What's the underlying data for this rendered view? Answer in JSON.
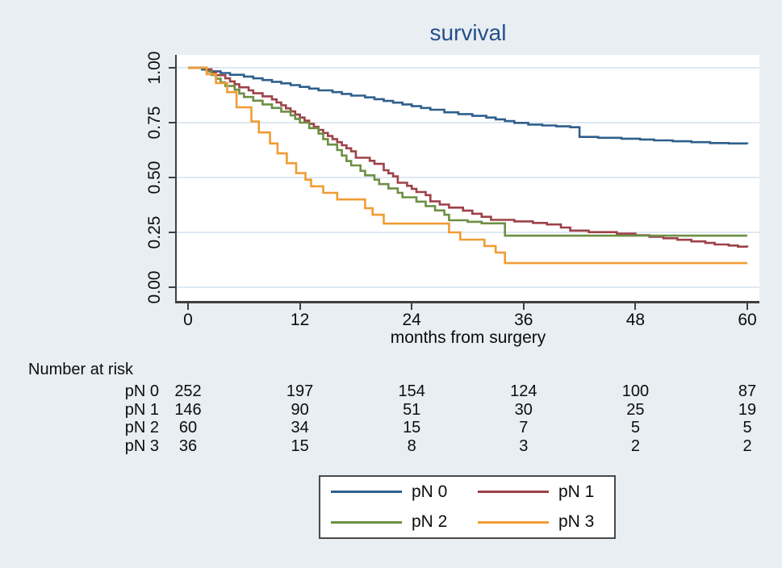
{
  "title": "survival",
  "colors": {
    "background": "#e8eef2",
    "plot_background": "#ffffff",
    "grid": "#dfe9f2",
    "axis": "#3f3f3f",
    "title_text": "#26508b",
    "text": "#0d0d0d",
    "legend_border": "#4a4a4a",
    "series_pn0": "#2e5f8c",
    "series_pn1": "#9d4148",
    "series_pn2": "#6d8f44",
    "series_pn3": "#f09c33"
  },
  "chart_data": {
    "type": "line",
    "subtype": "kaplan-meier-step",
    "title": "survival",
    "xlabel": "months from surgery",
    "ylabel": "",
    "xlim": [
      0,
      60
    ],
    "ylim": [
      0,
      1
    ],
    "xticks": [
      0,
      12,
      24,
      36,
      48,
      60
    ],
    "yticks": [
      {
        "v": 0.0,
        "label": "0.00"
      },
      {
        "v": 0.25,
        "label": "0.25"
      },
      {
        "v": 0.5,
        "label": "0.50"
      },
      {
        "v": 0.75,
        "label": "0.75"
      },
      {
        "v": 1.0,
        "label": "1.00"
      }
    ],
    "grid": "horizontal",
    "legend_position": "below",
    "legend": [
      "pN 0",
      "pN 1",
      "pN 2",
      "pN 3"
    ],
    "series": [
      {
        "name": "pN 0",
        "color": "#2e5f8c",
        "points": [
          [
            0,
            1.0
          ],
          [
            1.5,
            0.992
          ],
          [
            2.5,
            0.984
          ],
          [
            3.5,
            0.976
          ],
          [
            4.5,
            0.968
          ],
          [
            6,
            0.96
          ],
          [
            7,
            0.952
          ],
          [
            8,
            0.944
          ],
          [
            9,
            0.936
          ],
          [
            10,
            0.929
          ],
          [
            11,
            0.921
          ],
          [
            12,
            0.913
          ],
          [
            13,
            0.905
          ],
          [
            14,
            0.897
          ],
          [
            15.5,
            0.889
          ],
          [
            16.5,
            0.881
          ],
          [
            17.5,
            0.873
          ],
          [
            19,
            0.865
          ],
          [
            20,
            0.857
          ],
          [
            21,
            0.849
          ],
          [
            22,
            0.841
          ],
          [
            23,
            0.833
          ],
          [
            24,
            0.825
          ],
          [
            25,
            0.817
          ],
          [
            26,
            0.809
          ],
          [
            27.5,
            0.797
          ],
          [
            29,
            0.789
          ],
          [
            30.5,
            0.781
          ],
          [
            32,
            0.773
          ],
          [
            33,
            0.765
          ],
          [
            34,
            0.757
          ],
          [
            35,
            0.749
          ],
          [
            36.5,
            0.741
          ],
          [
            38,
            0.737
          ],
          [
            39.5,
            0.733
          ],
          [
            41,
            0.729
          ],
          [
            42,
            0.685
          ],
          [
            44,
            0.681
          ],
          [
            46.5,
            0.677
          ],
          [
            48.5,
            0.673
          ],
          [
            50,
            0.669
          ],
          [
            52,
            0.665
          ],
          [
            54,
            0.661
          ],
          [
            56,
            0.657
          ],
          [
            58,
            0.655
          ],
          [
            60,
            0.653
          ]
        ]
      },
      {
        "name": "pN 1",
        "color": "#9d4148",
        "points": [
          [
            0,
            1.0
          ],
          [
            2,
            0.993
          ],
          [
            2.5,
            0.979
          ],
          [
            3,
            0.966
          ],
          [
            4,
            0.952
          ],
          [
            4.5,
            0.938
          ],
          [
            5,
            0.925
          ],
          [
            5.5,
            0.911
          ],
          [
            6.5,
            0.897
          ],
          [
            7,
            0.884
          ],
          [
            8,
            0.87
          ],
          [
            9,
            0.856
          ],
          [
            9.5,
            0.842
          ],
          [
            10,
            0.829
          ],
          [
            10.5,
            0.815
          ],
          [
            11,
            0.801
          ],
          [
            11.5,
            0.787
          ],
          [
            12,
            0.773
          ],
          [
            12.5,
            0.759
          ],
          [
            13,
            0.745
          ],
          [
            13.5,
            0.731
          ],
          [
            14,
            0.717
          ],
          [
            14.5,
            0.703
          ],
          [
            15,
            0.689
          ],
          [
            15.5,
            0.675
          ],
          [
            16,
            0.661
          ],
          [
            16.5,
            0.647
          ],
          [
            17,
            0.633
          ],
          [
            17.5,
            0.619
          ],
          [
            18,
            0.59
          ],
          [
            19.5,
            0.576
          ],
          [
            20,
            0.562
          ],
          [
            21,
            0.533
          ],
          [
            21.5,
            0.519
          ],
          [
            22,
            0.505
          ],
          [
            22.5,
            0.476
          ],
          [
            23.5,
            0.462
          ],
          [
            24,
            0.448
          ],
          [
            24.5,
            0.434
          ],
          [
            25.5,
            0.42
          ],
          [
            26,
            0.391
          ],
          [
            27,
            0.377
          ],
          [
            28,
            0.363
          ],
          [
            29.5,
            0.349
          ],
          [
            30.5,
            0.335
          ],
          [
            31.5,
            0.321
          ],
          [
            32.5,
            0.307
          ],
          [
            35,
            0.3
          ],
          [
            37,
            0.293
          ],
          [
            38.5,
            0.286
          ],
          [
            40,
            0.272
          ],
          [
            41,
            0.258
          ],
          [
            43,
            0.251
          ],
          [
            46,
            0.244
          ],
          [
            48,
            0.237
          ],
          [
            49.5,
            0.23
          ],
          [
            51,
            0.223
          ],
          [
            52.5,
            0.216
          ],
          [
            54,
            0.209
          ],
          [
            55.5,
            0.202
          ],
          [
            56.5,
            0.195
          ],
          [
            58,
            0.19
          ],
          [
            59,
            0.185
          ],
          [
            60,
            0.182
          ]
        ]
      },
      {
        "name": "pN 2",
        "color": "#6d8f44",
        "points": [
          [
            0,
            1.0
          ],
          [
            2,
            0.983
          ],
          [
            2.5,
            0.967
          ],
          [
            3,
            0.95
          ],
          [
            3.5,
            0.933
          ],
          [
            4,
            0.917
          ],
          [
            5,
            0.9
          ],
          [
            5.5,
            0.883
          ],
          [
            6,
            0.867
          ],
          [
            7,
            0.85
          ],
          [
            8,
            0.833
          ],
          [
            9,
            0.817
          ],
          [
            10,
            0.8
          ],
          [
            11,
            0.783
          ],
          [
            11.5,
            0.767
          ],
          [
            12,
            0.75
          ],
          [
            13,
            0.725
          ],
          [
            14,
            0.7
          ],
          [
            14.5,
            0.675
          ],
          [
            15,
            0.65
          ],
          [
            16,
            0.625
          ],
          [
            16.5,
            0.6
          ],
          [
            17,
            0.575
          ],
          [
            17.5,
            0.555
          ],
          [
            18.5,
            0.53
          ],
          [
            19,
            0.51
          ],
          [
            20,
            0.49
          ],
          [
            20.5,
            0.47
          ],
          [
            21.5,
            0.45
          ],
          [
            22.5,
            0.43
          ],
          [
            23,
            0.41
          ],
          [
            24.5,
            0.39
          ],
          [
            25.5,
            0.37
          ],
          [
            26.5,
            0.35
          ],
          [
            27.5,
            0.33
          ],
          [
            28,
            0.305
          ],
          [
            30,
            0.298
          ],
          [
            31.5,
            0.291
          ],
          [
            34,
            0.235
          ],
          [
            60,
            0.235
          ]
        ]
      },
      {
        "name": "pN 3",
        "color": "#f09c33",
        "points": [
          [
            0,
            1.0
          ],
          [
            2,
            0.971
          ],
          [
            3,
            0.93
          ],
          [
            4.2,
            0.889
          ],
          [
            5.2,
            0.82
          ],
          [
            6.8,
            0.755
          ],
          [
            7.6,
            0.705
          ],
          [
            8.8,
            0.655
          ],
          [
            9.6,
            0.61
          ],
          [
            10.6,
            0.565
          ],
          [
            11.6,
            0.52
          ],
          [
            12.6,
            0.49
          ],
          [
            13.2,
            0.46
          ],
          [
            14.5,
            0.43
          ],
          [
            16,
            0.4
          ],
          [
            19,
            0.36
          ],
          [
            19.8,
            0.33
          ],
          [
            21,
            0.29
          ],
          [
            28,
            0.25
          ],
          [
            29.2,
            0.217
          ],
          [
            31.8,
            0.188
          ],
          [
            33,
            0.158
          ],
          [
            34,
            0.11
          ],
          [
            60,
            0.11
          ]
        ]
      }
    ],
    "number_at_risk": {
      "heading": "Number at risk",
      "time_points": [
        0,
        12,
        24,
        36,
        48,
        60
      ],
      "rows": [
        {
          "label": "pN 0",
          "counts": [
            252,
            197,
            154,
            124,
            100,
            87
          ]
        },
        {
          "label": "pN 1",
          "counts": [
            146,
            90,
            51,
            30,
            25,
            19
          ]
        },
        {
          "label": "pN 2",
          "counts": [
            60,
            34,
            15,
            7,
            5,
            5
          ]
        },
        {
          "label": "pN 3",
          "counts": [
            36,
            15,
            8,
            3,
            2,
            2
          ]
        }
      ]
    }
  }
}
